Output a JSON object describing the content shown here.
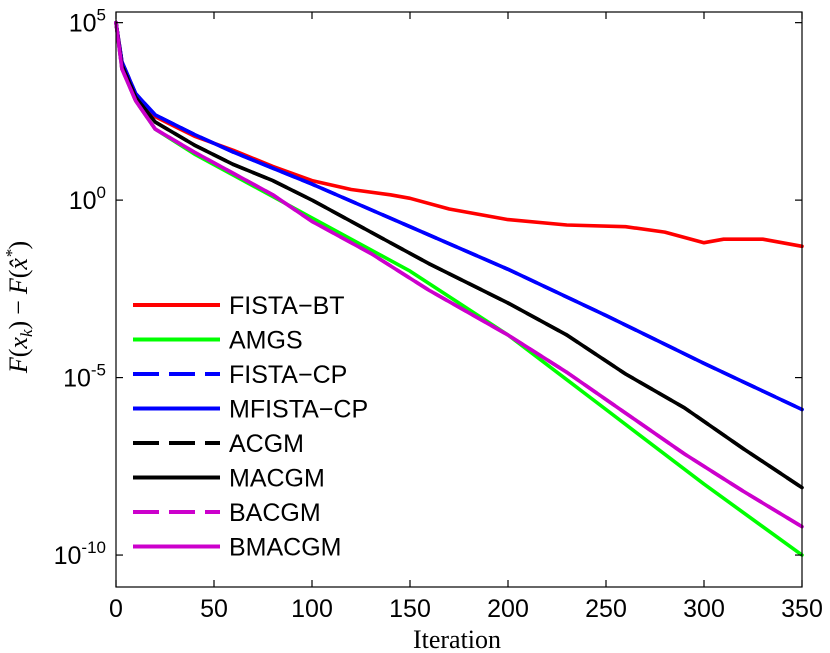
{
  "chart_data": {
    "type": "line",
    "title": "",
    "xlabel": "Iteration",
    "ylabel": "F(x_k) − F(x̂*)",
    "ylabel_parts": {
      "F1": "F",
      "x": "x",
      "k": "k",
      "F2": "F",
      "xhat": "x̂",
      "star": "*",
      "minus": "−",
      "lp": "(",
      "rp": ")"
    },
    "xlim": [
      0,
      350
    ],
    "ylim_log10": [
      -10.9,
      5.3
    ],
    "y_scale": "log",
    "x_ticks": [
      0,
      50,
      100,
      150,
      200,
      250,
      300,
      350
    ],
    "x_tick_labels": [
      "0",
      "50",
      "100",
      "150",
      "200",
      "250",
      "300",
      "350"
    ],
    "y_ticks_log10": [
      5,
      0,
      -5,
      -10
    ],
    "y_tick_base": "10",
    "y_tick_exponents": [
      "5",
      "0",
      "-5",
      "-10"
    ],
    "grid": false,
    "legend_position": "bottom-left",
    "series": [
      {
        "name": "FISTA−BT",
        "color": "#ff0000",
        "dash": false,
        "x": [
          0,
          3,
          10,
          20,
          40,
          60,
          80,
          100,
          120,
          140,
          150,
          170,
          200,
          230,
          260,
          280,
          300,
          310,
          330,
          350
        ],
        "log10_y": [
          5.0,
          3.9,
          3.0,
          2.35,
          1.8,
          1.4,
          0.95,
          0.55,
          0.3,
          0.15,
          0.05,
          -0.25,
          -0.55,
          -0.7,
          -0.75,
          -0.9,
          -1.2,
          -1.1,
          -1.1,
          -1.3
        ]
      },
      {
        "name": "AMGS",
        "color": "#00ff00",
        "dash": false,
        "x": [
          0,
          3,
          10,
          20,
          40,
          60,
          80,
          100,
          150,
          200,
          250,
          300,
          350
        ],
        "log10_y": [
          5.0,
          3.7,
          2.8,
          2.0,
          1.3,
          0.7,
          0.1,
          -0.5,
          -2.0,
          -3.8,
          -5.9,
          -8.0,
          -10.0
        ]
      },
      {
        "name": "FISTA−CP",
        "color": "#0000ff",
        "dash": true,
        "x": [
          0,
          3,
          10,
          20,
          40,
          60,
          80,
          100,
          150,
          200,
          250,
          300,
          350
        ],
        "log10_y": [
          5.0,
          3.9,
          3.0,
          2.4,
          1.85,
          1.35,
          0.9,
          0.45,
          -0.75,
          -1.95,
          -3.25,
          -4.6,
          -5.9
        ]
      },
      {
        "name": "MFISTA−CP",
        "color": "#0000ff",
        "dash": false,
        "x": [
          0,
          3,
          10,
          20,
          40,
          60,
          80,
          100,
          150,
          200,
          250,
          300,
          350
        ],
        "log10_y": [
          5.0,
          3.9,
          3.0,
          2.4,
          1.85,
          1.35,
          0.9,
          0.45,
          -0.75,
          -1.95,
          -3.25,
          -4.6,
          -5.9
        ]
      },
      {
        "name": "ACGM",
        "color": "#000000",
        "dash": true,
        "x": [
          0,
          3,
          10,
          20,
          40,
          60,
          80,
          100,
          130,
          160,
          200,
          230,
          260,
          290,
          320,
          350
        ],
        "log10_y": [
          5.0,
          3.8,
          2.9,
          2.2,
          1.55,
          1.0,
          0.55,
          0.0,
          -0.9,
          -1.8,
          -2.9,
          -3.8,
          -4.9,
          -5.85,
          -7.0,
          -8.1
        ]
      },
      {
        "name": "MACGM",
        "color": "#000000",
        "dash": false,
        "x": [
          0,
          3,
          10,
          20,
          40,
          60,
          80,
          100,
          130,
          160,
          200,
          230,
          260,
          290,
          320,
          350
        ],
        "log10_y": [
          5.0,
          3.8,
          2.9,
          2.2,
          1.55,
          1.0,
          0.55,
          0.0,
          -0.9,
          -1.8,
          -2.9,
          -3.8,
          -4.9,
          -5.85,
          -7.0,
          -8.1
        ]
      },
      {
        "name": "BACGM",
        "color": "#cc00cc",
        "dash": true,
        "x": [
          0,
          3,
          10,
          20,
          40,
          60,
          80,
          100,
          130,
          160,
          200,
          230,
          260,
          290,
          320,
          350
        ],
        "log10_y": [
          5.0,
          3.7,
          2.8,
          2.0,
          1.35,
          0.75,
          0.15,
          -0.6,
          -1.5,
          -2.55,
          -3.8,
          -4.85,
          -6.0,
          -7.15,
          -8.2,
          -9.2
        ]
      },
      {
        "name": "BMACGM",
        "color": "#cc00cc",
        "dash": false,
        "x": [
          0,
          3,
          10,
          20,
          40,
          60,
          80,
          100,
          130,
          160,
          200,
          230,
          260,
          290,
          320,
          350
        ],
        "log10_y": [
          5.0,
          3.7,
          2.8,
          2.0,
          1.35,
          0.75,
          0.15,
          -0.6,
          -1.5,
          -2.55,
          -3.8,
          -4.85,
          -6.0,
          -7.15,
          -8.2,
          -9.2
        ]
      }
    ]
  }
}
